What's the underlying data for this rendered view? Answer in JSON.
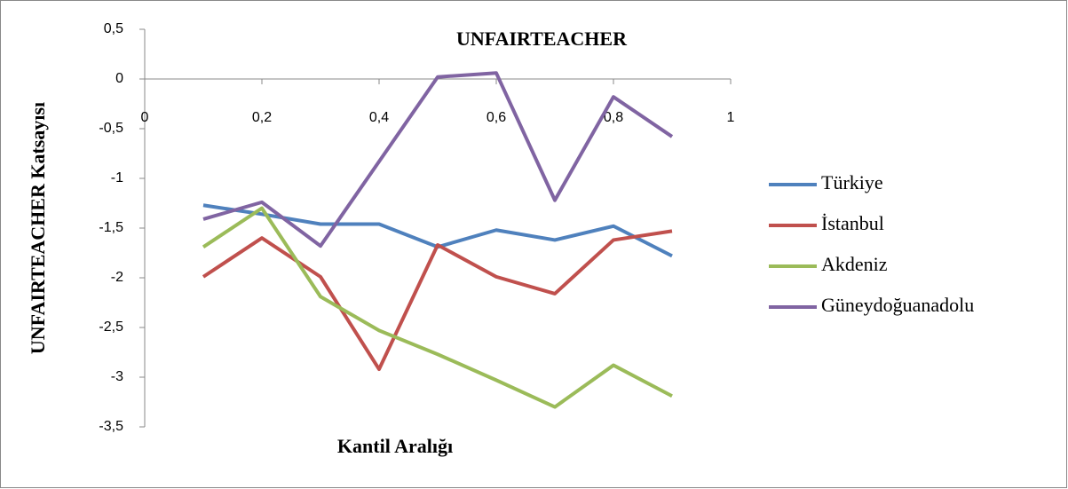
{
  "chart_data": {
    "type": "line",
    "title": "UNFAIRTEACHER",
    "x_label": "Kantil Aralığı",
    "y_label": "UNFAIRTEACHER Katsayısı",
    "x": [
      0.1,
      0.2,
      0.3,
      0.4,
      0.5,
      0.6,
      0.7,
      0.8,
      0.9
    ],
    "series": [
      {
        "name": "Türkiye",
        "color": "#4f81bd",
        "values": [
          -1.27,
          -1.36,
          -1.46,
          -1.46,
          -1.69,
          -1.52,
          -1.62,
          -1.48,
          -1.78
        ]
      },
      {
        "name": "İstanbul",
        "color": "#c0504d",
        "values": [
          -1.99,
          -1.6,
          -1.99,
          -2.92,
          -1.67,
          -1.99,
          -2.16,
          -1.62,
          -1.53
        ]
      },
      {
        "name": "Akdeniz",
        "color": "#9bbb59",
        "values": [
          -1.69,
          -1.3,
          -2.19,
          -2.53,
          -2.77,
          -3.03,
          -3.3,
          -2.88,
          -3.19
        ]
      },
      {
        "name": "Güneydoğuanadolu",
        "color": "#8064a2",
        "values": [
          -1.41,
          -1.24,
          -1.68,
          -0.83,
          0.02,
          0.06,
          -1.22,
          -0.18,
          -0.58
        ]
      }
    ],
    "xlim": [
      0,
      1
    ],
    "xticks": [
      0,
      {
        "value": 0.2,
        "label": "0,2"
      },
      {
        "value": 0.4,
        "label": "0,4"
      },
      {
        "value": 0.6,
        "label": "0,6"
      },
      {
        "value": 0.8,
        "label": "0,8"
      },
      1
    ],
    "ylim": [
      -3.5,
      0.5
    ],
    "yticks": [
      {
        "value": 0.5,
        "label": "0,5"
      },
      0,
      {
        "value": -0.5,
        "label": "-0,5"
      },
      -1,
      {
        "value": -1.5,
        "label": "-1,5"
      },
      -2,
      {
        "value": -2.5,
        "label": "-2,5"
      },
      -3,
      {
        "value": -3.5,
        "label": "-3,5"
      }
    ],
    "legend": "right",
    "grid": false
  }
}
